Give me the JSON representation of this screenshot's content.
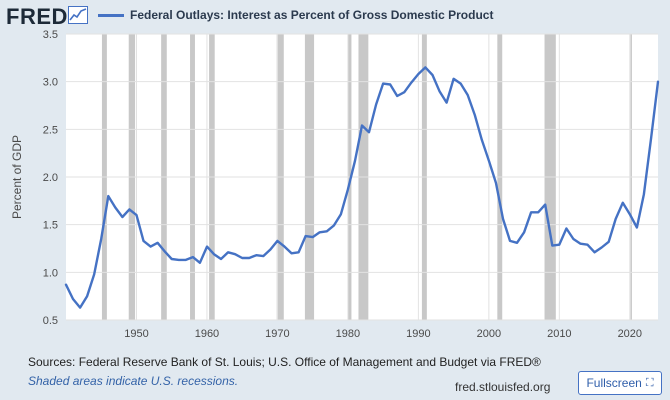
{
  "header": {
    "logo_text": "FRED",
    "legend_label": "Federal Outlays: Interest as Percent of Gross Domestic Product",
    "series_color": "#4572c4"
  },
  "footer": {
    "sources": "Sources: Federal Reserve Bank of St. Louis; U.S. Office of Management and Budget via FRED®",
    "recession_note": "Shaded areas indicate U.S. recessions.",
    "site": "fred.stlouisfed.org",
    "fullscreen_label": "Fullscreen",
    "fullscreen_icon": "expand-icon"
  },
  "chart_data": {
    "type": "line",
    "title": "",
    "xlabel": "",
    "ylabel": "Percent of GDP",
    "xlim": [
      1940,
      2024
    ],
    "ylim": [
      0.5,
      3.5
    ],
    "x_ticks": [
      1950,
      1960,
      1970,
      1980,
      1990,
      2000,
      2010,
      2020
    ],
    "y_ticks": [
      0.5,
      1.0,
      1.5,
      2.0,
      2.5,
      3.0,
      3.5
    ],
    "y_tick_labels": [
      "0.5",
      "1.0",
      "1.5",
      "2.0",
      "2.5",
      "3.0",
      "3.5"
    ],
    "grid": true,
    "legend_position": "top-left",
    "recession_color": "#c8c8c8",
    "recessions": [
      [
        1945.1,
        1945.8
      ],
      [
        1948.9,
        1949.8
      ],
      [
        1953.5,
        1954.3
      ],
      [
        1957.6,
        1958.3
      ],
      [
        1960.3,
        1961.1
      ],
      [
        1969.9,
        1970.9
      ],
      [
        1973.9,
        1975.2
      ],
      [
        1980.0,
        1980.5
      ],
      [
        1981.5,
        1982.9
      ],
      [
        1990.5,
        1991.2
      ],
      [
        2001.2,
        2001.9
      ],
      [
        2007.9,
        2009.5
      ],
      [
        2020.1,
        2020.3
      ]
    ],
    "series": [
      {
        "color": "#4572c4",
        "x": [
          1940,
          1941,
          1942,
          1943,
          1944,
          1945,
          1946,
          1947,
          1948,
          1949,
          1950,
          1951,
          1952,
          1953,
          1954,
          1955,
          1956,
          1957,
          1958,
          1959,
          1960,
          1961,
          1962,
          1963,
          1964,
          1965,
          1966,
          1967,
          1968,
          1969,
          1970,
          1971,
          1972,
          1973,
          1974,
          1975,
          1976,
          1977,
          1978,
          1979,
          1980,
          1981,
          1982,
          1983,
          1984,
          1985,
          1986,
          1987,
          1988,
          1989,
          1990,
          1991,
          1992,
          1993,
          1994,
          1995,
          1996,
          1997,
          1998,
          1999,
          2000,
          2001,
          2002,
          2003,
          2004,
          2005,
          2006,
          2007,
          2008,
          2009,
          2010,
          2011,
          2012,
          2013,
          2014,
          2015,
          2016,
          2017,
          2018,
          2019,
          2020,
          2021,
          2022,
          2023,
          2024
        ],
        "values": [
          0.87,
          0.72,
          0.63,
          0.75,
          0.98,
          1.35,
          1.8,
          1.68,
          1.58,
          1.66,
          1.6,
          1.33,
          1.27,
          1.31,
          1.22,
          1.14,
          1.13,
          1.13,
          1.16,
          1.1,
          1.27,
          1.19,
          1.14,
          1.21,
          1.19,
          1.15,
          1.15,
          1.18,
          1.17,
          1.24,
          1.33,
          1.27,
          1.2,
          1.21,
          1.38,
          1.37,
          1.42,
          1.43,
          1.49,
          1.61,
          1.87,
          2.17,
          2.54,
          2.47,
          2.76,
          2.98,
          2.97,
          2.85,
          2.89,
          2.99,
          3.08,
          3.15,
          3.07,
          2.9,
          2.78,
          3.03,
          2.98,
          2.86,
          2.65,
          2.39,
          2.17,
          1.94,
          1.56,
          1.33,
          1.31,
          1.42,
          1.63,
          1.63,
          1.71,
          1.28,
          1.29,
          1.46,
          1.35,
          1.3,
          1.29,
          1.21,
          1.26,
          1.32,
          1.56,
          1.73,
          1.61,
          1.47,
          1.82,
          2.4,
          3.0
        ]
      }
    ]
  }
}
